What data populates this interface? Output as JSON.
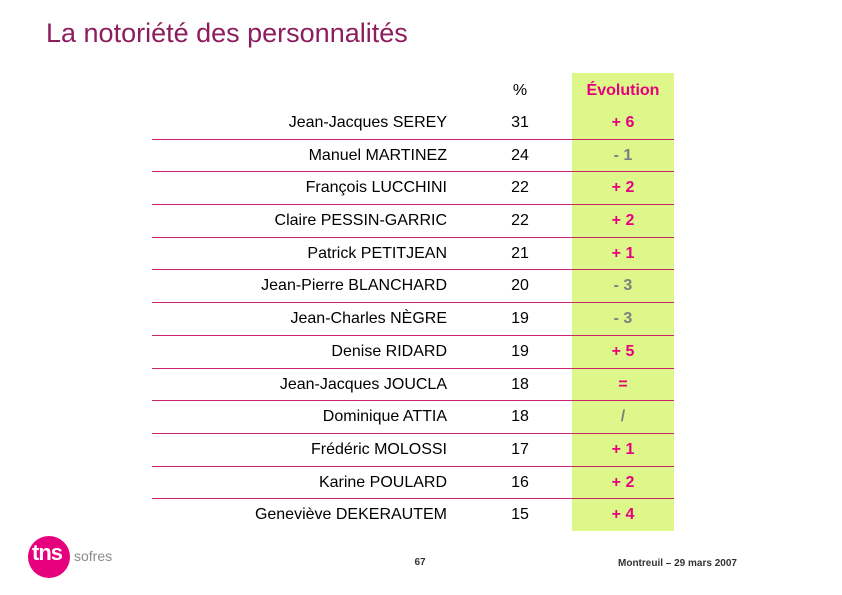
{
  "title": "La notoriété des personnalités",
  "table": {
    "header_pct": "%",
    "header_evolution": "Évolution",
    "rows": [
      {
        "name": "Jean-Jacques SEREY",
        "pct": "31",
        "evo": "+ 6",
        "trend": "pos"
      },
      {
        "name": "Manuel MARTINEZ",
        "pct": "24",
        "evo": "- 1",
        "trend": "neg"
      },
      {
        "name": "François LUCCHINI",
        "pct": "22",
        "evo": "+ 2",
        "trend": "pos"
      },
      {
        "name": "Claire PESSIN-GARRIC",
        "pct": "22",
        "evo": "+ 2",
        "trend": "pos"
      },
      {
        "name": "Patrick PETITJEAN",
        "pct": "21",
        "evo": "+ 1",
        "trend": "pos"
      },
      {
        "name": "Jean-Pierre BLANCHARD",
        "pct": "20",
        "evo": "- 3",
        "trend": "neg"
      },
      {
        "name": "Jean-Charles NÈGRE",
        "pct": "19",
        "evo": "- 3",
        "trend": "neg"
      },
      {
        "name": "Denise RIDARD",
        "pct": "19",
        "evo": "+ 5",
        "trend": "pos"
      },
      {
        "name": "Jean-Jacques JOUCLA",
        "pct": "18",
        "evo": "=",
        "trend": "pos"
      },
      {
        "name": "Dominique ATTIA",
        "pct": "18",
        "evo": "/",
        "trend": "neg"
      },
      {
        "name": "Frédéric MOLOSSI",
        "pct": "17",
        "evo": "+ 1",
        "trend": "pos"
      },
      {
        "name": "Karine POULARD",
        "pct": "16",
        "evo": "+ 2",
        "trend": "pos"
      },
      {
        "name": "Geneviève DEKERAUTEM",
        "pct": "15",
        "evo": "+ 4",
        "trend": "pos"
      }
    ]
  },
  "logo": {
    "tns": "tns",
    "sofres": "sofres"
  },
  "footer": {
    "page_number": "67",
    "location_date": "Montreuil – 29 mars 2007"
  },
  "colors": {
    "title": "#8c1d5e",
    "accent": "#e6007e",
    "negative": "#7f7f7f",
    "evolution_background": "#ddf78a"
  }
}
